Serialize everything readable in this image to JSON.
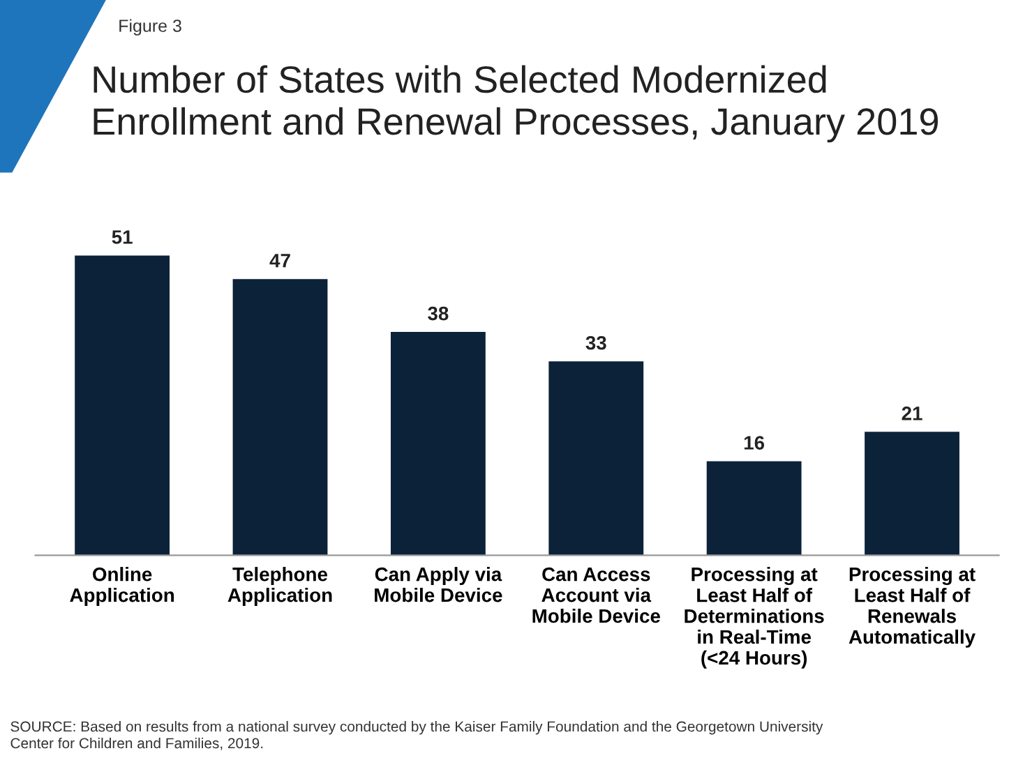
{
  "chart_data": {
    "type": "bar",
    "title": "Number of States with Selected Modernized\nEnrollment and Renewal Processes, January 2019",
    "subtitle": "Figure 3",
    "categories": [
      "Online\nApplication",
      "Telephone\nApplication",
      "Can Apply via\nMobile Device",
      "Can Access\nAccount via\nMobile Device",
      "Processing at\nLeast Half of\nDeterminations\nin Real-Time\n(<24 Hours)",
      "Processing at\nLeast Half of\nRenewals\nAutomatically"
    ],
    "values": [
      51,
      47,
      38,
      33,
      16,
      21
    ],
    "color": "#0b2239",
    "data_labels": true,
    "grid": false,
    "legend": false,
    "tick_labels": "x",
    "annotations": [
      "SOURCE: Based on results from a national survey conducted by the Kaiser Family Foundation and the Georgetown University\nCenter for Children and Families, 2019."
    ]
  }
}
